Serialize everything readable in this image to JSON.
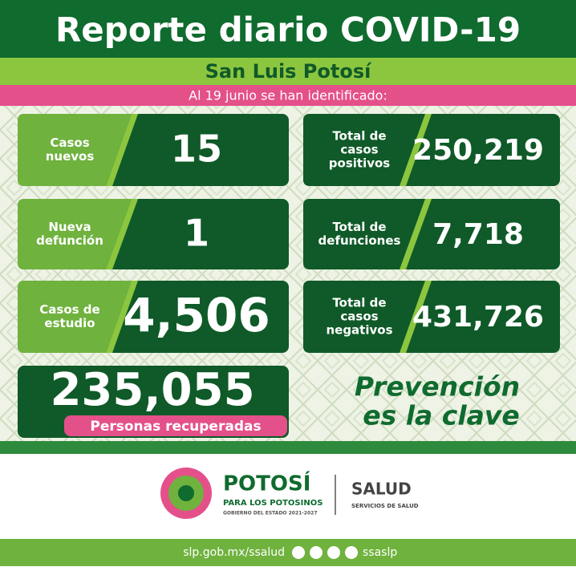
{
  "header": {
    "title": "Reporte diario COVID-19",
    "subtitle": "San Luis Potosí",
    "date_line": "Al 19 junio se han identificado:"
  },
  "cards": [
    {
      "label": [
        "Casos",
        "nuevos"
      ],
      "value": "15"
    },
    {
      "label": [
        "Total de",
        "casos",
        "positivos"
      ],
      "value": "250,219"
    },
    {
      "label": [
        "Nueva",
        "defunción"
      ],
      "value": "1"
    },
    {
      "label": [
        "Total de",
        "defunciones"
      ],
      "value": "7,718"
    },
    {
      "label": [
        "Casos de",
        "estudio"
      ],
      "value": "4,506"
    },
    {
      "label": [
        "Total de",
        "casos",
        "negativos"
      ],
      "value": "431,726"
    }
  ],
  "recovered": {
    "value": "235,055",
    "label": "Personas recuperadas"
  },
  "slogan": [
    "Prevención",
    "es la clave"
  ],
  "footer": {
    "brand": "POTOSÍ",
    "brand_sub": "PARA LOS POTOSINOS",
    "brand_gov": "GOBIERNO DEL ESTADO 2021-2027",
    "dept": "SALUD",
    "dept_sub": "SERVICIOS DE SALUD",
    "url": "slp.gob.mx/ssalud",
    "handle": "ssaslp"
  }
}
